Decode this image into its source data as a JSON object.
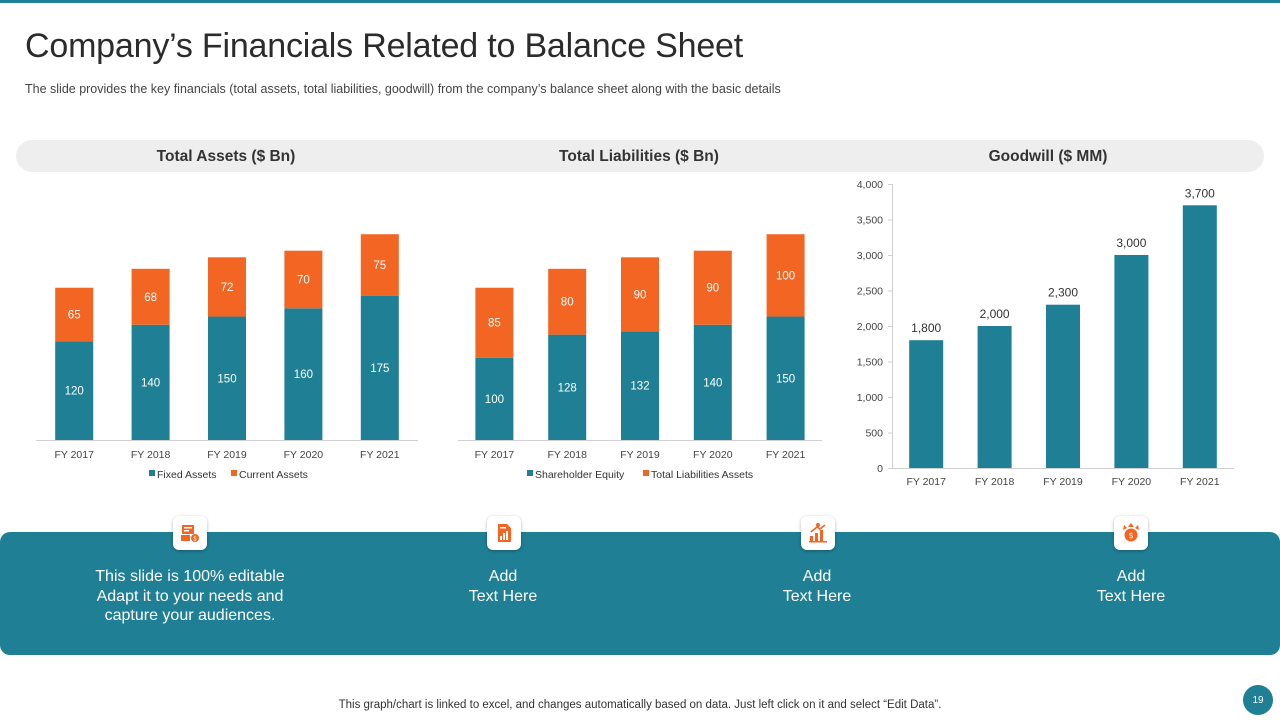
{
  "title": "Company’s Financials Related to Balance Sheet",
  "subtitle": "The slide provides  the key financials (total assets, total liabilities, goodwill) from the company’s balance sheet along with the basic details",
  "colors": {
    "teal": "#1f7f95",
    "orange": "#f26522",
    "band_gray": "#eeeeee"
  },
  "chart_data": [
    {
      "type": "bar",
      "stacked": true,
      "title": "Total Assets ($ Bn)",
      "categories": [
        "FY 2017",
        "FY 2018",
        "FY 2019",
        "FY 2020",
        "FY 2021"
      ],
      "series": [
        {
          "name": "Fixed Assets",
          "values": [
            120,
            140,
            150,
            160,
            175
          ]
        },
        {
          "name": "Current Assets",
          "values": [
            65,
            68,
            72,
            70,
            75
          ]
        }
      ],
      "legend": "bottom",
      "ylim": [
        0,
        260
      ]
    },
    {
      "type": "bar",
      "stacked": true,
      "title": "Total Liabilities ($ Bn)",
      "categories": [
        "FY 2017",
        "FY 2018",
        "FY 2019",
        "FY 2020",
        "FY 2021"
      ],
      "series": [
        {
          "name": "Shareholder Equity",
          "values": [
            100,
            128,
            132,
            140,
            150
          ]
        },
        {
          "name": "Total Liabilities Assets",
          "values": [
            85,
            80,
            90,
            90,
            100
          ]
        }
      ],
      "legend": "bottom",
      "ylim": [
        0,
        300
      ]
    },
    {
      "type": "bar",
      "title": "Goodwill ($ MM)",
      "categories": [
        "FY 2017",
        "FY 2018",
        "FY 2019",
        "FY 2020",
        "FY 2021"
      ],
      "series": [
        {
          "name": "Goodwill",
          "values": [
            1800,
            2000,
            2300,
            3000,
            3700
          ]
        }
      ],
      "value_labels": [
        "1,800",
        "2,000",
        "2,300",
        "3,000",
        "3,700"
      ],
      "yticks": [
        "0",
        "500",
        "1,000",
        "1,500",
        "2,000",
        "2,500",
        "3,000",
        "3,500",
        "4,000"
      ],
      "ylim": [
        0,
        4000
      ]
    }
  ],
  "band": {
    "items": [
      {
        "icon": "balance-report-icon",
        "text": "This slide is 100% editable\nAdapt it to your needs and\ncapture your audiences."
      },
      {
        "icon": "document-chart-icon",
        "text": "Add\nText Here"
      },
      {
        "icon": "growth-chart-icon",
        "text": "Add\nText Here"
      },
      {
        "icon": "money-growth-icon",
        "text": "Add\nText Here"
      }
    ]
  },
  "footer": "This graph/chart is linked to excel, and changes automatically based on data. Just left click on it and select “Edit Data”.",
  "page_number": "19"
}
